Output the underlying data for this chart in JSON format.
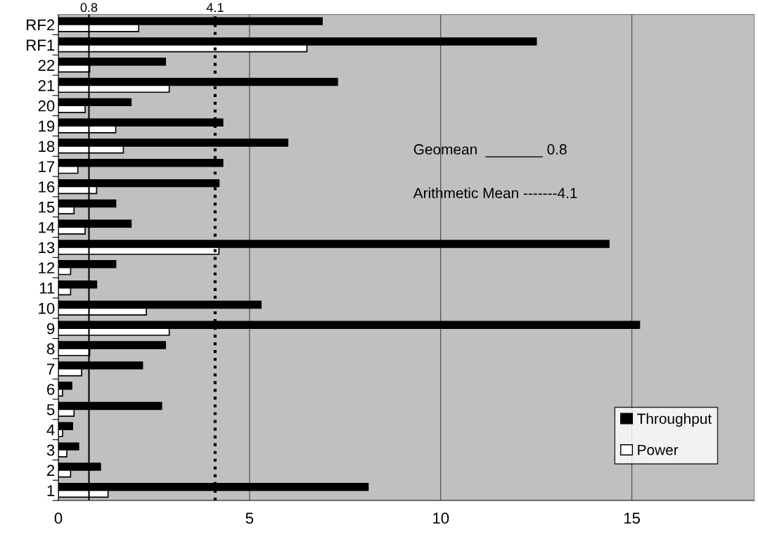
{
  "chart_data": {
    "type": "bar",
    "orientation": "horizontal",
    "categories": [
      "RF2",
      "RF1",
      "22",
      "21",
      "20",
      "19",
      "18",
      "17",
      "16",
      "15",
      "14",
      "13",
      "12",
      "11",
      "10",
      "9",
      "8",
      "7",
      "6",
      "5",
      "4",
      "3",
      "2",
      "1"
    ],
    "series": [
      {
        "name": "Throughput",
        "color": "#000000",
        "values": [
          6.9,
          12.5,
          2.8,
          7.3,
          1.9,
          4.3,
          6.0,
          4.3,
          4.2,
          1.5,
          1.9,
          14.4,
          1.5,
          1.0,
          5.3,
          15.2,
          2.8,
          2.2,
          0.35,
          2.7,
          0.37,
          0.53,
          1.1,
          8.1
        ]
      },
      {
        "name": "Power",
        "color": "#ffffff",
        "values": [
          2.1,
          6.5,
          0.82,
          2.9,
          0.7,
          1.5,
          1.7,
          0.51,
          1.0,
          0.41,
          0.7,
          4.2,
          0.32,
          0.32,
          2.3,
          2.9,
          0.82,
          0.61,
          0.11,
          0.41,
          0.11,
          0.22,
          0.32,
          1.3
        ]
      }
    ],
    "xlim": [
      0,
      18.2
    ],
    "xticks": [
      0,
      5,
      10,
      15
    ],
    "grid": "x",
    "legend": "lower right",
    "ref_lines": [
      {
        "axis": "x",
        "value": 0.8,
        "label": "0.8",
        "line_style": "solid",
        "color": "#000000"
      },
      {
        "axis": "x",
        "value": 4.1,
        "label": "4.1",
        "line_style": "dotted",
        "color": "#000000"
      }
    ],
    "annotations": [
      "Geomean  _______ 0.8",
      "Arithmetic Mean -------4.1"
    ]
  }
}
